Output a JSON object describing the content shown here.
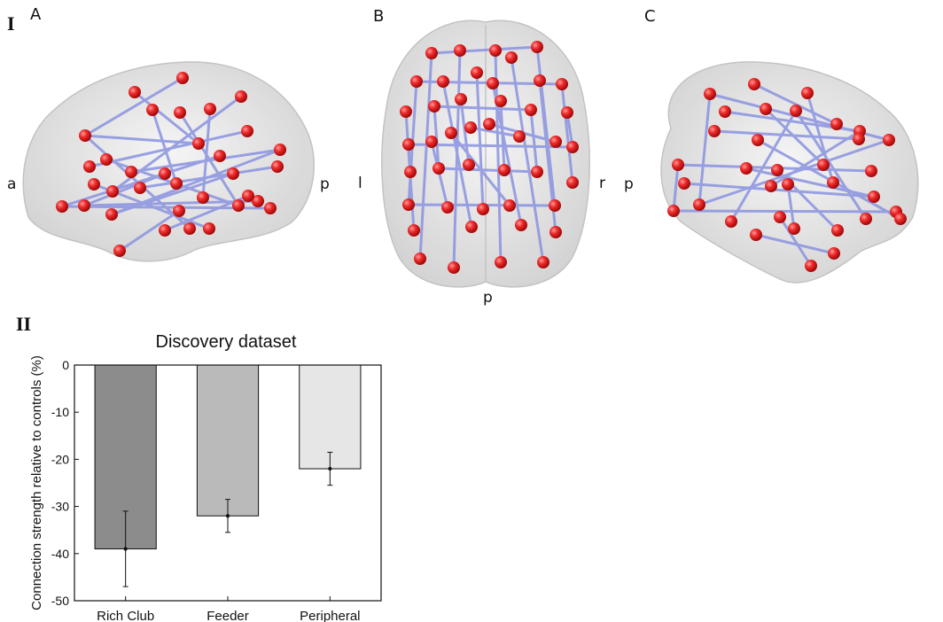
{
  "figure": {
    "part_i": "I",
    "part_ii": "II",
    "panels": [
      {
        "label": "A",
        "left": "a",
        "right": "p"
      },
      {
        "label": "B",
        "left": "l",
        "right": "r",
        "bottom": "p"
      },
      {
        "label": "C",
        "left": "p"
      }
    ]
  },
  "colors": {
    "brain": "#dcdcdc",
    "node": "#e8141b",
    "edge": "#8a93e0"
  },
  "chart_data": {
    "type": "bar",
    "title": "Discovery dataset",
    "xlabel": "",
    "ylabel": "Connection strength relative to controls (%)",
    "categories": [
      "Rich Club",
      "Feeder",
      "Peripheral"
    ],
    "values": [
      -39,
      -32,
      -22
    ],
    "errors": [
      8,
      3.5,
      3.5
    ],
    "colors": [
      "#8c8c8c",
      "#bababa",
      "#e6e6e6"
    ],
    "ylim": [
      -50,
      0
    ],
    "yticks": [
      "0",
      "-10",
      "-20",
      "-30",
      "-40",
      "-50"
    ],
    "grid": false
  }
}
